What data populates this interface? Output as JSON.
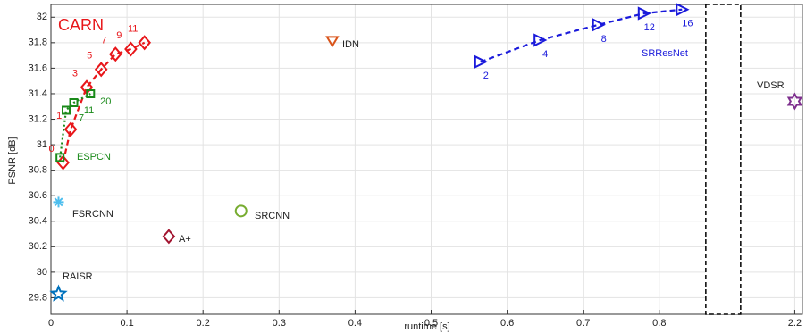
{
  "chart_data": {
    "type": "scatter",
    "xlabel": "runtime [s]",
    "ylabel": "PSNR [dB]",
    "xlim": [
      0,
      2.21
    ],
    "xbreak": [
      0.86,
      2.13
    ],
    "xticks": [
      0,
      0.1,
      0.2,
      0.3,
      0.4,
      0.5,
      0.6,
      0.7,
      0.8,
      2.2
    ],
    "ylim": [
      29.67,
      32.1
    ],
    "yticks": [
      29.8,
      30,
      30.2,
      30.4,
      30.6,
      30.8,
      31,
      31.2,
      31.4,
      31.6,
      31.8,
      32
    ],
    "grid": true,
    "series": [
      {
        "name": "CARN",
        "color": "#e8161a",
        "marker": "diamond",
        "line": "dashed",
        "x": [
          0.016,
          0.026,
          0.047,
          0.066,
          0.085,
          0.105,
          0.123
        ],
        "y": [
          30.86,
          31.12,
          31.45,
          31.59,
          31.71,
          31.75,
          31.8
        ],
        "point_labels": [
          0,
          1,
          3,
          5,
          7,
          9,
          11
        ]
      },
      {
        "name": "ESPCN",
        "color": "#1a8a1a",
        "marker": "square",
        "line": "dotted",
        "x": [
          0.012,
          0.02,
          0.03,
          0.052
        ],
        "y": [
          30.9,
          31.27,
          31.33,
          31.4
        ],
        "point_labels": [
          null,
          7,
          11,
          20
        ]
      },
      {
        "name": "SRResNet",
        "color": "#1a1adb",
        "marker": "triangle-right",
        "line": "dashed",
        "x": [
          0.565,
          0.643,
          0.72,
          0.78,
          0.83
        ],
        "y": [
          31.65,
          31.82,
          31.94,
          32.03,
          32.06
        ],
        "point_labels": [
          2,
          4,
          8,
          12,
          16
        ]
      },
      {
        "name": "IDN",
        "color": "#d95319",
        "marker": "triangle-down",
        "x": [
          0.37
        ],
        "y": [
          31.81
        ]
      },
      {
        "name": "SRCNN",
        "color": "#77ac30",
        "marker": "circle",
        "x": [
          0.25
        ],
        "y": [
          30.48
        ]
      },
      {
        "name": "A+",
        "color": "#a2142f",
        "marker": "diamond",
        "x": [
          0.155
        ],
        "y": [
          30.28
        ]
      },
      {
        "name": "FSRCNN",
        "color": "#4dbeee",
        "marker": "asterisk",
        "x": [
          0.01
        ],
        "y": [
          30.55
        ]
      },
      {
        "name": "RAISR",
        "color": "#0072bd",
        "marker": "star",
        "x": [
          0.01
        ],
        "y": [
          29.83
        ]
      },
      {
        "name": "VDSR",
        "color": "#7e2f8e",
        "marker": "hexagram",
        "x": [
          2.2
        ],
        "y": [
          31.34
        ]
      }
    ]
  }
}
